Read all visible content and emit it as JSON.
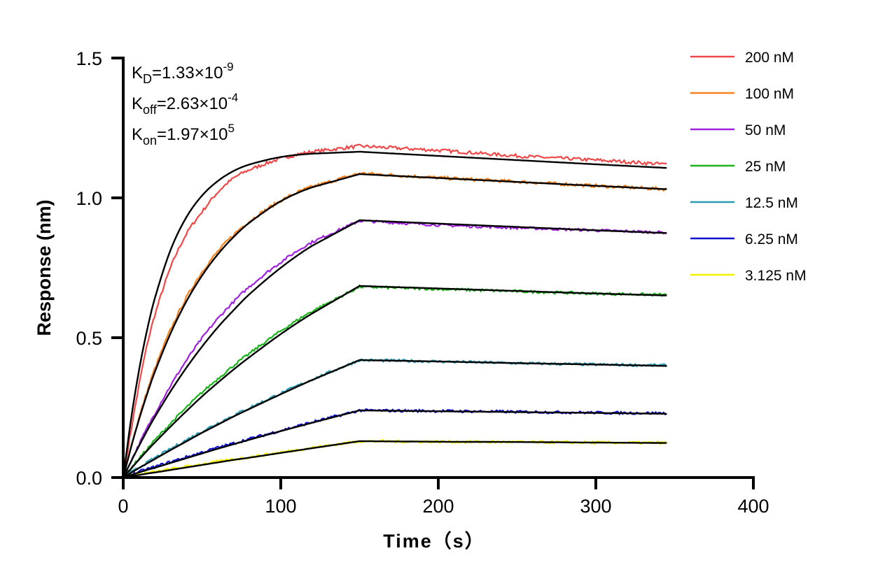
{
  "chart_data": {
    "type": "line",
    "title": "",
    "xlabel": "Time（s）",
    "ylabel": "Response (nm)",
    "xlim": [
      0,
      400
    ],
    "ylim": [
      0,
      1.5
    ],
    "xticks": [
      "0",
      "100",
      "200",
      "300",
      "400"
    ],
    "yticks": [
      "0.0",
      "0.5",
      "1.0",
      "1.5"
    ],
    "grid": false,
    "legend_position": "right",
    "fit_color": "#000000",
    "annotations": [
      {
        "sym": "K",
        "sub": "D",
        "eq": "=1.33×10",
        "sup": "-9"
      },
      {
        "sym": "K",
        "sub": "off",
        "eq": "=2.63×10",
        "sup": "-4"
      },
      {
        "sym": "K",
        "sub": "on",
        "eq": "=1.97×10",
        "sup": "5"
      }
    ],
    "x": [
      0,
      5,
      10,
      15,
      20,
      30,
      40,
      50,
      60,
      70,
      80,
      100,
      120,
      150,
      200,
      250,
      300,
      345
    ],
    "series": [
      {
        "name": "200 nM",
        "color": "#f04848",
        "values": [
          0,
          0.17,
          0.33,
          0.47,
          0.58,
          0.75,
          0.87,
          0.95,
          1.02,
          1.07,
          1.1,
          1.14,
          1.165,
          1.185,
          1.17,
          1.15,
          1.135,
          1.12
        ],
        "fit": [
          0,
          0.21,
          0.383,
          0.524,
          0.64,
          0.813,
          0.93,
          1.008,
          1.06,
          1.096,
          1.119,
          1.146,
          1.158,
          1.165,
          1.15,
          1.135,
          1.12,
          1.107
        ]
      },
      {
        "name": "100 nM",
        "color": "#f5821e",
        "values": [
          0,
          0.112,
          0.213,
          0.305,
          0.388,
          0.528,
          0.642,
          0.735,
          0.808,
          0.868,
          0.916,
          0.99,
          1.04,
          1.088,
          1.072,
          1.058,
          1.043,
          1.031
        ],
        "fit": [
          0,
          0.109,
          0.207,
          0.296,
          0.377,
          0.515,
          0.629,
          0.722,
          0.798,
          0.86,
          0.911,
          0.988,
          1.038,
          1.085,
          1.071,
          1.057,
          1.043,
          1.031
        ]
      },
      {
        "name": "50 nM",
        "color": "#a020e0",
        "values": [
          0,
          0.06,
          0.118,
          0.175,
          0.228,
          0.328,
          0.418,
          0.498,
          0.568,
          0.628,
          0.682,
          0.77,
          0.842,
          0.918,
          0.903,
          0.893,
          0.884,
          0.876
        ],
        "fit": [
          0,
          0.058,
          0.113,
          0.166,
          0.216,
          0.308,
          0.392,
          0.468,
          0.537,
          0.598,
          0.655,
          0.75,
          0.829,
          0.92,
          0.908,
          0.896,
          0.884,
          0.874
        ]
      },
      {
        "name": "25 nM",
        "color": "#1ab41a",
        "values": [
          0,
          0.034,
          0.068,
          0.101,
          0.133,
          0.193,
          0.25,
          0.304,
          0.353,
          0.4,
          0.443,
          0.524,
          0.595,
          0.682,
          0.674,
          0.666,
          0.658,
          0.653
        ],
        "fit": [
          0,
          0.032,
          0.064,
          0.095,
          0.125,
          0.182,
          0.237,
          0.29,
          0.339,
          0.386,
          0.43,
          0.513,
          0.587,
          0.685,
          0.676,
          0.667,
          0.658,
          0.651
        ]
      },
      {
        "name": "12.5 nM",
        "color": "#2a9db5",
        "values": [
          0,
          0.018,
          0.036,
          0.053,
          0.07,
          0.102,
          0.134,
          0.165,
          0.194,
          0.222,
          0.249,
          0.301,
          0.351,
          0.42,
          0.415,
          0.409,
          0.404,
          0.401
        ],
        "fit": [
          0,
          0.017,
          0.034,
          0.05,
          0.066,
          0.098,
          0.129,
          0.16,
          0.189,
          0.218,
          0.245,
          0.298,
          0.349,
          0.42,
          0.415,
          0.409,
          0.404,
          0.399
        ]
      },
      {
        "name": "6.25 nM",
        "color": "#1010d0",
        "values": [
          0,
          0.01,
          0.02,
          0.03,
          0.038,
          0.056,
          0.073,
          0.09,
          0.107,
          0.122,
          0.138,
          0.168,
          0.198,
          0.24,
          0.238,
          0.235,
          0.232,
          0.23
        ],
        "fit": [
          0,
          0.009,
          0.018,
          0.027,
          0.035,
          0.052,
          0.069,
          0.086,
          0.103,
          0.119,
          0.135,
          0.166,
          0.196,
          0.24,
          0.237,
          0.234,
          0.231,
          0.228
        ]
      },
      {
        "name": "3.125 nM",
        "color": "#f5f000",
        "values": [
          0,
          0.006,
          0.011,
          0.016,
          0.02,
          0.03,
          0.039,
          0.048,
          0.057,
          0.065,
          0.073,
          0.09,
          0.107,
          0.13,
          0.128,
          0.127,
          0.125,
          0.124
        ],
        "fit": [
          0,
          0.005,
          0.009,
          0.014,
          0.018,
          0.027,
          0.036,
          0.045,
          0.054,
          0.063,
          0.071,
          0.088,
          0.105,
          0.13,
          0.128,
          0.127,
          0.125,
          0.1235
        ]
      }
    ]
  }
}
